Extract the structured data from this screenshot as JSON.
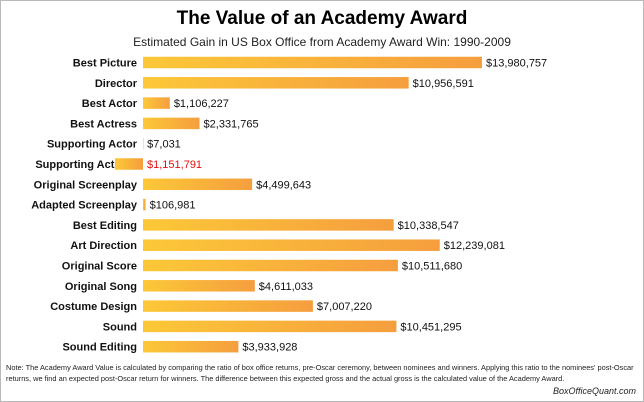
{
  "chart_data": {
    "type": "bar",
    "orientation": "horizontal",
    "title": "The Value of an Academy Award",
    "subtitle": "Estimated Gain in US Box Office from Academy Award Win: 1990-2009",
    "categories": [
      "Best Picture",
      "Director",
      "Best Actor",
      "Best Actress",
      "Supporting Actor",
      "Supporting Actress",
      "Original Screenplay",
      "Adapted Screenplay",
      "Best Editing",
      "Art Direction",
      "Original Score",
      "Original Song",
      "Costume Design",
      "Sound",
      "Sound Editing"
    ],
    "values": [
      13980757,
      10956591,
      1106227,
      2331765,
      7031,
      -1151791,
      4499643,
      106981,
      10338547,
      12239081,
      10511680,
      4611033,
      7007220,
      10451295,
      3933928
    ],
    "labels": [
      "$13,980,757",
      "$10,956,591",
      "$1,106,227",
      "$2,331,765",
      "$7,031",
      "$1,151,791",
      "$4,499,643",
      "$106,981",
      "$10,338,547",
      "$12,239,081",
      "$10,511,680",
      "$4,611,033",
      "$7,007,220",
      "$10,451,295",
      "$3,933,928"
    ],
    "negative_label_color": "#e01010",
    "bar_color_light": "#fcc838",
    "bar_color_dark": "#f59e3e",
    "xlim": [
      -1151791,
      13980757
    ],
    "grid": false,
    "legend": "none"
  },
  "note": "Note: The Academy Award Value is calculated by comparing the ratio of box office returns, pre-Oscar ceremony, between nominees and winners. Applying this ratio to the nominees' post-Oscar returns, we find an expected post-Oscar return for winners. The difference between this expected gross and the actual gross is the calculated value of the Academy Award.",
  "source": "BoxOfficeQuant.com"
}
